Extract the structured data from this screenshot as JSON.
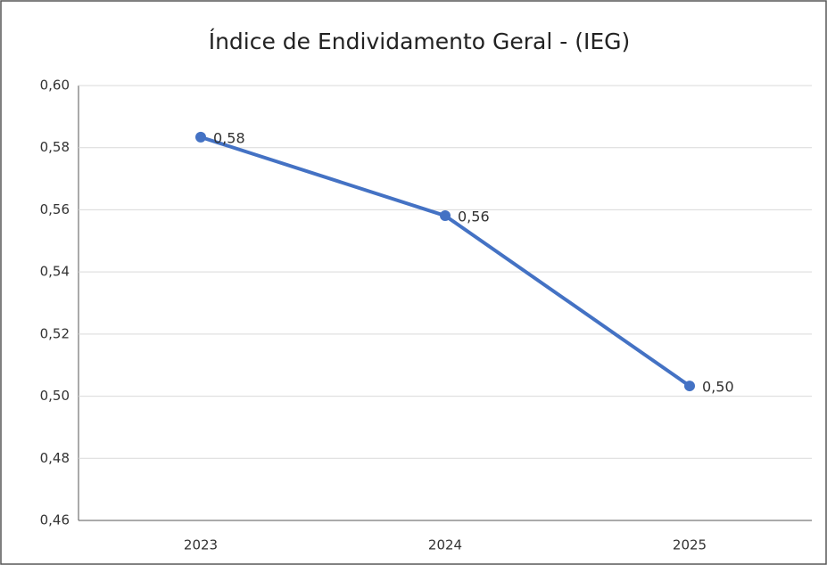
{
  "chart_data": {
    "type": "line",
    "title": "Índice de Endividamento Geral - (IEG)",
    "categories": [
      "2023",
      "2024",
      "2025"
    ],
    "series": [
      {
        "name": "IEG",
        "color": "#4472c4",
        "values": [
          0.5834,
          0.5581,
          0.5033
        ],
        "value_labels": [
          "0,58",
          "0,56",
          "0,50"
        ]
      }
    ],
    "ylim": [
      0.46,
      0.6
    ],
    "yticks": [
      {
        "value": 0.46,
        "label": "0,46"
      },
      {
        "value": 0.48,
        "label": "0,48"
      },
      {
        "value": 0.5,
        "label": "0,50"
      },
      {
        "value": 0.52,
        "label": "0,52"
      },
      {
        "value": 0.54,
        "label": "0,54"
      },
      {
        "value": 0.56,
        "label": "0,56"
      },
      {
        "value": 0.58,
        "label": "0,58"
      },
      {
        "value": 0.6,
        "label": "0,60"
      }
    ],
    "grid": true
  }
}
